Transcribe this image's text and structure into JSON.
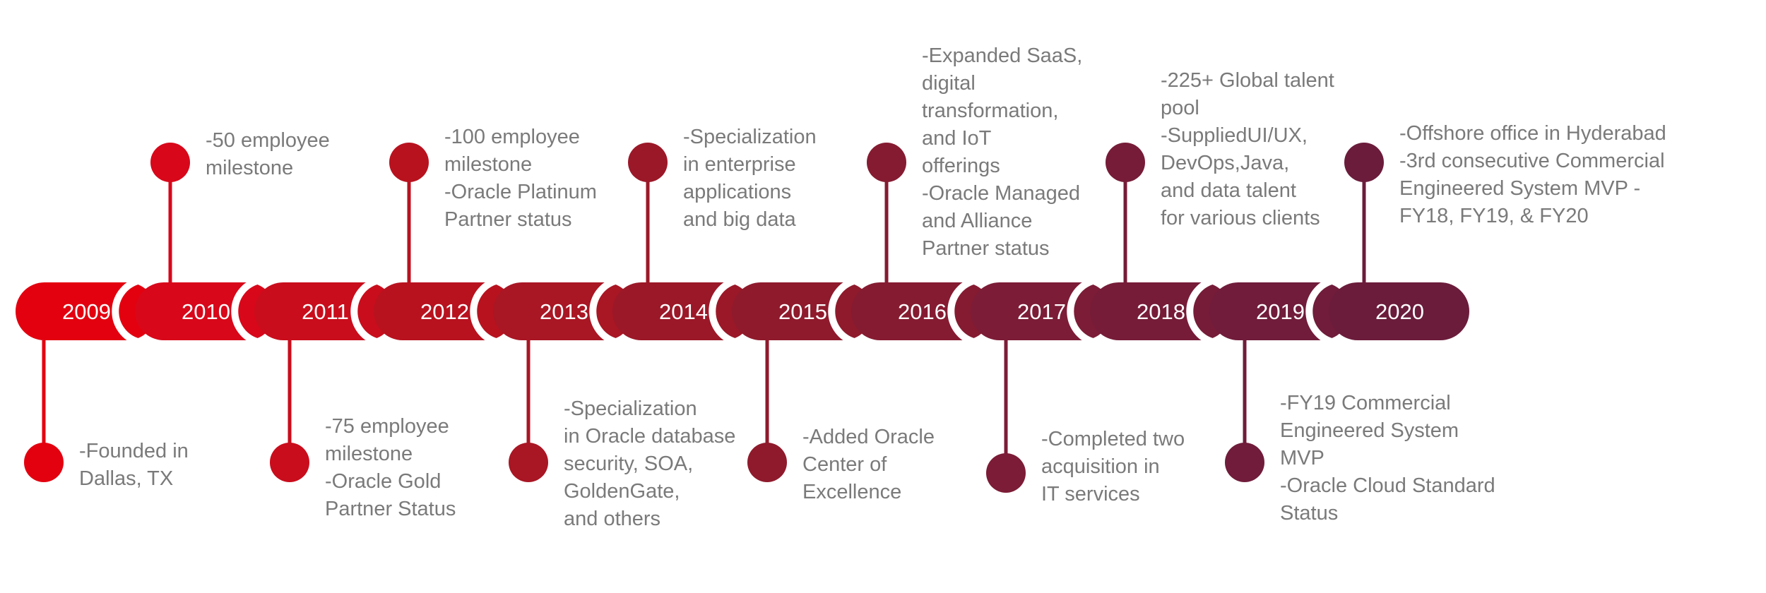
{
  "timeline": {
    "years": [
      {
        "year": "2009",
        "color": "#e3000f",
        "side": "bottom",
        "note": [
          "-Founded in",
          "Dallas, TX"
        ]
      },
      {
        "year": "2010",
        "color": "#d8071a",
        "side": "top",
        "note": [
          "-50 employee",
          "milestone"
        ]
      },
      {
        "year": "2011",
        "color": "#c90d1c",
        "side": "bottom",
        "note": [
          "-75 employee",
          "milestone",
          "-Oracle Gold",
          "Partner Status"
        ]
      },
      {
        "year": "2012",
        "color": "#b8121f",
        "side": "top",
        "note": [
          "-100 employee",
          "milestone",
          "-Oracle Platinum",
          "Partner status"
        ]
      },
      {
        "year": "2013",
        "color": "#a91624",
        "side": "bottom",
        "note": [
          "-Specialization",
          "in Oracle database",
          "security, SOA,",
          "GoldenGate,",
          "and others"
        ]
      },
      {
        "year": "2014",
        "color": "#9b1828",
        "side": "top",
        "note": [
          "-Specialization",
          "in enterprise",
          "applications",
          "and big data"
        ]
      },
      {
        "year": "2015",
        "color": "#8f1a2c",
        "side": "bottom",
        "note": [
          "-Added Oracle",
          "Center of",
          "Excellence"
        ]
      },
      {
        "year": "2016",
        "color": "#851b31",
        "side": "top",
        "note": [
          "-Expanded SaaS,",
          "digital",
          "transformation,",
          "and IoT",
          "offerings",
          "-Oracle Managed",
          "and Alliance",
          "Partner status"
        ]
      },
      {
        "year": "2017",
        "color": "#7c1c36",
        "side": "bottom",
        "note": [
          "-Completed two",
          "acquisition in",
          "IT services"
        ]
      },
      {
        "year": "2018",
        "color": "#761c38",
        "side": "top",
        "note": [
          "-225+ Global talent",
          "pool",
          "-SuppliedUI/UX,",
          "DevOps,Java,",
          "and data talent",
          "for various clients"
        ]
      },
      {
        "year": "2019",
        "color": "#701c3a",
        "side": "bottom",
        "note": [
          "-FY19 Commercial",
          "Engineered System",
          "MVP",
          "-Oracle Cloud Standard",
          "Status"
        ]
      },
      {
        "year": "2020",
        "color": "#6b1c3b",
        "side": "top",
        "note": [
          "-Offshore office in Hyderabad",
          "-3rd consecutive Commercial",
          "Engineered System MVP -",
          "FY18, FY19, & FY20"
        ]
      }
    ]
  }
}
